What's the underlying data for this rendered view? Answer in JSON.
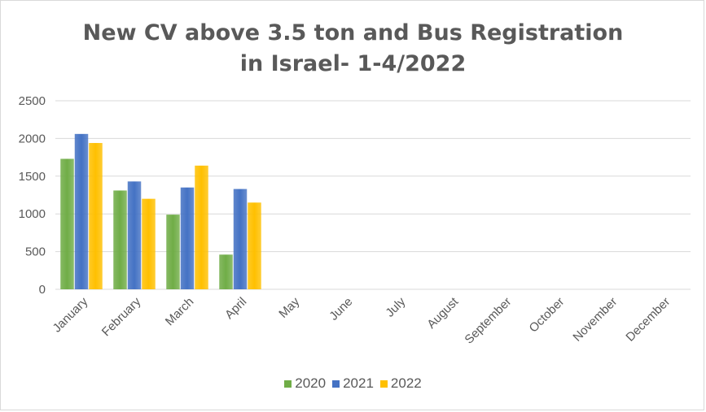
{
  "chart_data": {
    "type": "bar",
    "title_line1": "New CV above 3.5 ton and Bus Registration",
    "title_line2": "in Israel- 1-4/2022",
    "categories": [
      "January",
      "February",
      "March",
      "April",
      "May",
      "June",
      "July",
      "August",
      "September",
      "October",
      "November",
      "December"
    ],
    "series": [
      {
        "name": "2020",
        "color": "#70ad47",
        "values": [
          1730,
          1310,
          990,
          460,
          null,
          null,
          null,
          null,
          null,
          null,
          null,
          null
        ]
      },
      {
        "name": "2021",
        "color": "#4472c4",
        "values": [
          2060,
          1430,
          1350,
          1330,
          null,
          null,
          null,
          null,
          null,
          null,
          null,
          null
        ]
      },
      {
        "name": "2022",
        "color": "#ffc000",
        "values": [
          1940,
          1200,
          1640,
          1150,
          null,
          null,
          null,
          null,
          null,
          null,
          null,
          null
        ]
      }
    ],
    "ylim": [
      0,
      2500
    ],
    "yticks": [
      0,
      500,
      1000,
      1500,
      2000,
      2500
    ],
    "grid": true,
    "legend": "bottom"
  }
}
